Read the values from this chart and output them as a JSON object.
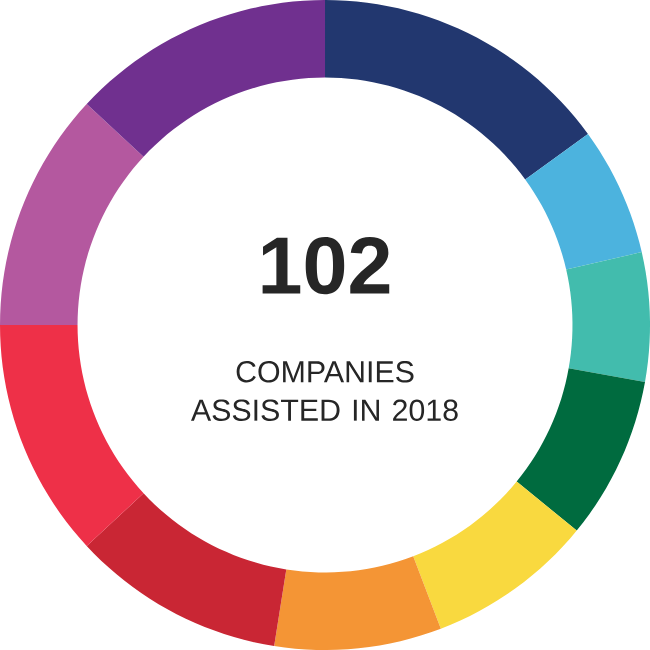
{
  "chart_data": {
    "type": "donut",
    "title": "102",
    "subtitle": "COMPANIES ASSISTED IN 2018",
    "categories": [
      null,
      null,
      null,
      null,
      null,
      null,
      null,
      null,
      null,
      null
    ],
    "values": [
      15.0,
      6.4,
      6.4,
      8.1,
      8.3,
      8.3,
      10.6,
      11.9,
      11.9,
      13.1
    ],
    "colors": [
      "#22376f",
      "#4cb3de",
      "#42bcad",
      "#006b3f",
      "#f9d93f",
      "#f49535",
      "#c92634",
      "#ee3048",
      "#b4589f",
      "#70308f"
    ]
  }
}
